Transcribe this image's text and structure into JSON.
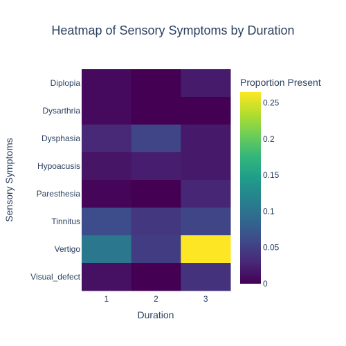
{
  "chart_data": {
    "type": "heatmap",
    "title": "Heatmap of Sensory Symptoms by Duration",
    "xlabel": "Duration",
    "ylabel": "Sensory Symptoms",
    "x": [
      "1",
      "2",
      "3"
    ],
    "y": [
      "Diplopia",
      "Dysarthria",
      "Dysphasia",
      "Hypoacusis",
      "Paresthesia",
      "Tinnitus",
      "Vertigo",
      "Visual_defect"
    ],
    "z": [
      [
        0.007,
        0.0,
        0.02
      ],
      [
        0.007,
        0.0,
        0.0
      ],
      [
        0.03,
        0.055,
        0.018
      ],
      [
        0.015,
        0.022,
        0.018
      ],
      [
        0.004,
        0.0,
        0.028
      ],
      [
        0.062,
        0.044,
        0.055
      ],
      [
        0.105,
        0.047,
        0.265
      ],
      [
        0.012,
        0.0,
        0.038
      ]
    ],
    "colorbar": {
      "title": "Proportion Present",
      "range": [
        0,
        0.265
      ],
      "ticks": [
        0,
        0.05,
        0.1,
        0.15,
        0.2,
        0.25
      ],
      "tick_labels": [
        "0",
        "0.05",
        "0.1",
        "0.15",
        "0.2",
        "0.25"
      ],
      "colorscale": "Viridis"
    }
  }
}
